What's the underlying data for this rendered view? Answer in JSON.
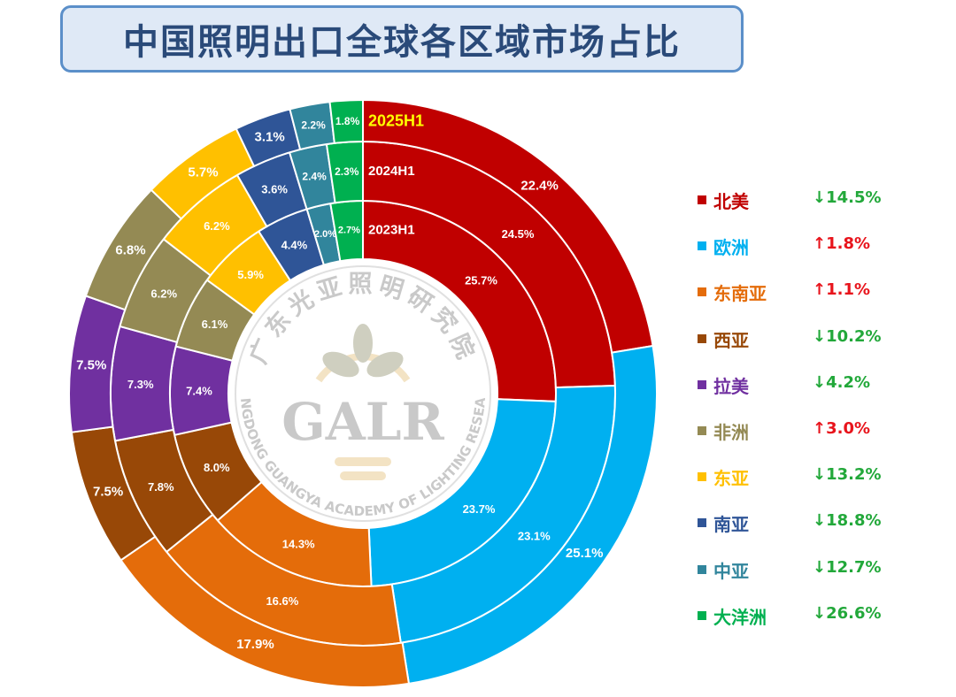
{
  "title": "中国照明出口全球各区域市场占比",
  "watermark": {
    "cn_name": "广东光亚照明研究院",
    "en_name": "GUANGDONG GUANGYA ACADEMY OF LIGHTING RESEARCH",
    "logo_text": "GALR"
  },
  "chart_data": {
    "type": "donut",
    "rings": [
      "2023H1",
      "2024H1",
      "2025H1"
    ],
    "ring_order": "inner-to-outer",
    "highlight_ring_label": "2025H1",
    "categories": [
      "北美",
      "欧洲",
      "东南亚",
      "西亚",
      "拉美",
      "非洲",
      "东亚",
      "南亚",
      "中亚",
      "大洋洲"
    ],
    "colors": [
      "#c00000",
      "#00b0f0",
      "#e46c0a",
      "#984807",
      "#7030a0",
      "#948a54",
      "#ffc000",
      "#2f5597",
      "#31859c",
      "#00b050"
    ],
    "series": [
      {
        "name": "2023H1",
        "values": [
          25.7,
          23.7,
          14.3,
          8.0,
          7.4,
          6.1,
          5.9,
          4.4,
          2.0,
          2.7
        ]
      },
      {
        "name": "2024H1",
        "values": [
          24.5,
          23.1,
          16.6,
          7.8,
          7.3,
          6.2,
          6.2,
          3.6,
          2.4,
          2.3
        ]
      },
      {
        "name": "2025H1",
        "values": [
          22.4,
          25.1,
          17.9,
          7.5,
          7.5,
          6.8,
          5.7,
          3.1,
          2.2,
          1.8
        ]
      }
    ],
    "legend": [
      {
        "label": "北美",
        "change": "↓14.5%",
        "direction": "down"
      },
      {
        "label": "欧洲",
        "change": "↑1.8%",
        "direction": "up"
      },
      {
        "label": "东南亚",
        "change": "↑1.1%",
        "direction": "up"
      },
      {
        "label": "西亚",
        "change": "↓10.2%",
        "direction": "down"
      },
      {
        "label": "拉美",
        "change": "↓4.2%",
        "direction": "down"
      },
      {
        "label": "非洲",
        "change": "↑3.0%",
        "direction": "up"
      },
      {
        "label": "东亚",
        "change": "↓13.2%",
        "direction": "down"
      },
      {
        "label": "南亚",
        "change": "↓18.8%",
        "direction": "down"
      },
      {
        "label": "中亚",
        "change": "↓12.7%",
        "direction": "down"
      },
      {
        "label": "大洋洲",
        "change": "↓26.6%",
        "direction": "down"
      }
    ],
    "up_color": "#e8141c",
    "down_color": "#22a83a",
    "legend_placement": "right"
  }
}
